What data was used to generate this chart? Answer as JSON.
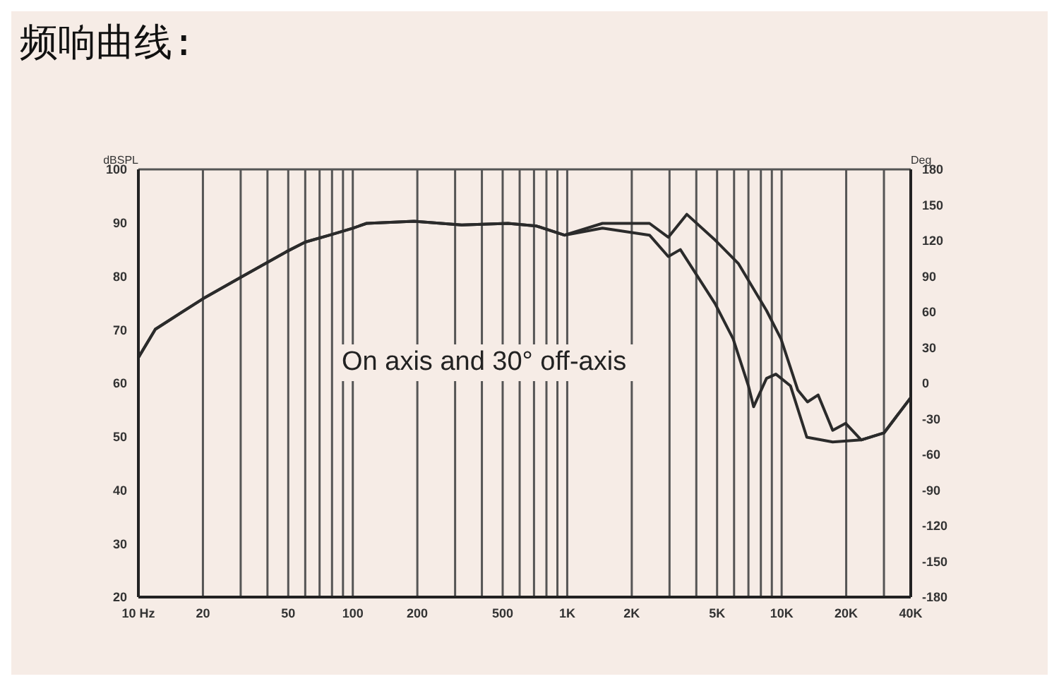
{
  "chart_data": {
    "type": "line",
    "title": "频响曲线:",
    "xlabel": null,
    "ylabel": "dBSPL",
    "y2label": "Deg",
    "annotations": [
      "On axis and 30° off-axis"
    ],
    "log": "x",
    "grid": true,
    "marker": "none",
    "line_style": "solid",
    "xlim": [
      10,
      40000
    ],
    "xticks": [
      {
        "value": 10,
        "label": "10 Hz"
      },
      20,
      {
        "value": 30,
        "label": null
      },
      {
        "value": 40,
        "label": null
      },
      50,
      {
        "value": 60,
        "label": null
      },
      {
        "value": 70,
        "label": null
      },
      {
        "value": 80,
        "label": null
      },
      {
        "value": 90,
        "label": null
      },
      100,
      200,
      {
        "value": 300,
        "label": null
      },
      {
        "value": 400,
        "label": null
      },
      500,
      {
        "value": 600,
        "label": null
      },
      {
        "value": 700,
        "label": null
      },
      {
        "value": 800,
        "label": null
      },
      {
        "value": 900,
        "label": null
      },
      {
        "value": 1000,
        "label": "1K"
      },
      {
        "value": 2000,
        "label": "2K"
      },
      {
        "value": 3000,
        "label": null
      },
      {
        "value": 4000,
        "label": null
      },
      {
        "value": 5000,
        "label": "5K"
      },
      {
        "value": 6000,
        "label": null
      },
      {
        "value": 7000,
        "label": null
      },
      {
        "value": 8000,
        "label": null
      },
      {
        "value": 9000,
        "label": null
      },
      {
        "value": 10000,
        "label": "10K"
      },
      {
        "value": 20000,
        "label": "20K"
      },
      {
        "value": 30000,
        "label": null
      },
      {
        "value": 40000,
        "label": "40K"
      }
    ],
    "ylim": [
      20,
      100
    ],
    "yticks": [
      20,
      30,
      40,
      50,
      60,
      70,
      80,
      90,
      100
    ],
    "y2lim": [
      -180,
      180
    ],
    "y2ticks": [
      -180,
      -150,
      -120,
      -90,
      -60,
      -30,
      0,
      30,
      60,
      90,
      120,
      150,
      180
    ],
    "series": [
      {
        "color": "#2b2b2b",
        "x": [
          10,
          12,
          20,
          30,
          49,
          60,
          78,
          100,
          116,
          193,
          322,
          529,
          720,
          970,
          1460,
          2420,
          2960,
          3610,
          4890,
          6280,
          8500,
          9930,
          11900,
          13200,
          14800,
          17300,
          19900,
          23500,
          30000,
          40000
        ],
        "values": [
          64.8,
          70.1,
          75.8,
          79.8,
          84.6,
          86.4,
          87.7,
          89.0,
          89.9,
          90.3,
          89.6,
          89.9,
          89.4,
          87.7,
          89.9,
          89.9,
          87.3,
          91.6,
          86.8,
          82.4,
          73.6,
          68.3,
          58.7,
          56.5,
          57.8,
          51.2,
          52.5,
          49.4,
          50.7,
          57.3
        ]
      },
      {
        "color": "#2b2b2b",
        "x": [
          10,
          12,
          20,
          30,
          49,
          60,
          78,
          100,
          116,
          193,
          322,
          529,
          720,
          970,
          1460,
          2420,
          2960,
          3370,
          4890,
          5940,
          7000,
          7400,
          8500,
          9400,
          11000,
          13100,
          17300,
          23500,
          30000,
          40000
        ],
        "values": [
          64.8,
          70.1,
          75.8,
          79.8,
          84.6,
          86.4,
          87.7,
          89.0,
          89.9,
          90.3,
          89.6,
          89.9,
          89.4,
          87.7,
          89.0,
          87.7,
          83.7,
          85.0,
          74.9,
          68.3,
          59.5,
          55.6,
          60.9,
          61.7,
          59.5,
          49.9,
          49.0,
          49.4,
          50.7,
          57.3
        ]
      }
    ]
  }
}
